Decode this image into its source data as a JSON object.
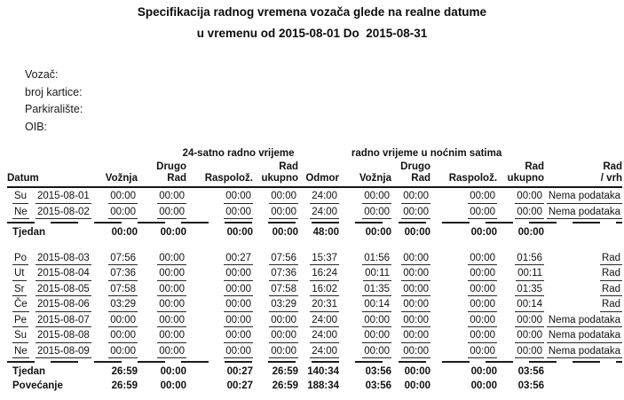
{
  "title": {
    "line1": "Specifikacija radnog vremena vozača glede na realne datume",
    "line2": "u vremenu od 2015-08-01 Do  2015-08-31"
  },
  "meta": {
    "vozac_label": "Vozač:",
    "broj_kartice_label": "broj kartice:",
    "parkiraliste_label": "Parkiralište:",
    "oib_label": "OIB:"
  },
  "table": {
    "groups": {
      "daytime": "24-satno radno vrijeme",
      "night": "radno vrijeme u noćnim satima"
    },
    "headers": {
      "datum": "Datum",
      "voznja": "Vožnja",
      "drugo": "Drugo",
      "rad": "Rad",
      "raspoloz": "Raspolož.",
      "ukupno": "ukupno",
      "odmor": "Odmor",
      "rad_vrh": "/ vrh"
    },
    "rows": [
      {
        "type": "day",
        "day": "Su",
        "date": "2015-08-01",
        "values": [
          "00:00",
          "00:00",
          "00:00",
          "00:00",
          "24:00",
          "00:00",
          "00:00",
          "00:00",
          "00:00"
        ],
        "note": "Nema podataka"
      },
      {
        "type": "day",
        "day": "Ne",
        "date": "2015-08-02",
        "values": [
          "00:00",
          "00:00",
          "00:00",
          "00:00",
          "24:00",
          "00:00",
          "00:00",
          "00:00",
          "00:00"
        ],
        "note": "Nema podataka"
      },
      {
        "type": "sep"
      },
      {
        "type": "total",
        "label": "Tjedan",
        "values": [
          "00:00",
          "00:00",
          "00:00",
          "00:00",
          "48:00",
          "00:00",
          "00:00",
          "00:00",
          "00:00"
        ],
        "note": ""
      },
      {
        "type": "gap"
      },
      {
        "type": "day",
        "day": "Po",
        "date": "2015-08-03",
        "values": [
          "07:56",
          "00:00",
          "00:27",
          "07:56",
          "15:37",
          "01:56",
          "00:00",
          "00:00",
          "01:56"
        ],
        "note": "Rad"
      },
      {
        "type": "day",
        "day": "Ut",
        "date": "2015-08-04",
        "values": [
          "07:36",
          "00:00",
          "00:00",
          "07:36",
          "16:24",
          "00:11",
          "00:00",
          "00:00",
          "00:11"
        ],
        "note": "Rad"
      },
      {
        "type": "day",
        "day": "Sr",
        "date": "2015-08-05",
        "values": [
          "07:58",
          "00:00",
          "00:00",
          "07:58",
          "16:02",
          "01:35",
          "00:00",
          "00:00",
          "01:35"
        ],
        "note": "Rad"
      },
      {
        "type": "day",
        "day": "Če",
        "date": "2015-08-06",
        "values": [
          "03:29",
          "00:00",
          "00:00",
          "03:29",
          "20:31",
          "00:14",
          "00:00",
          "00:00",
          "00:14"
        ],
        "note": "Rad"
      },
      {
        "type": "day",
        "day": "Pe",
        "date": "2015-08-07",
        "values": [
          "00:00",
          "00:00",
          "00:00",
          "00:00",
          "24:00",
          "00:00",
          "00:00",
          "00:00",
          "00:00"
        ],
        "note": "Nema podataka"
      },
      {
        "type": "day",
        "day": "Su",
        "date": "2015-08-08",
        "values": [
          "00:00",
          "00:00",
          "00:00",
          "00:00",
          "24:00",
          "00:00",
          "00:00",
          "00:00",
          "00:00"
        ],
        "note": "Nema podataka"
      },
      {
        "type": "day",
        "day": "Ne",
        "date": "2015-08-09",
        "values": [
          "00:00",
          "00:00",
          "00:00",
          "00:00",
          "24:00",
          "00:00",
          "00:00",
          "00:00",
          "00:00"
        ],
        "note": "Nema podataka"
      },
      {
        "type": "sep"
      },
      {
        "type": "total",
        "label": "Tjedan",
        "values": [
          "26:59",
          "00:00",
          "00:27",
          "26:59",
          "140:34",
          "03:56",
          "00:00",
          "00:00",
          "03:56"
        ],
        "note": ""
      },
      {
        "type": "total",
        "label": "Povećanje",
        "values": [
          "26:59",
          "00:00",
          "00:27",
          "26:59",
          "188:34",
          "03:56",
          "00:00",
          "00:00",
          "03:56"
        ],
        "note": ""
      }
    ]
  }
}
